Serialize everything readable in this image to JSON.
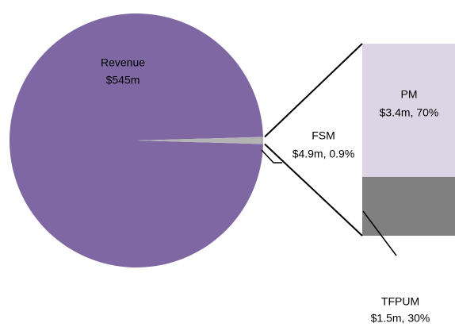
{
  "chart_data": {
    "type": "pie-of-bar",
    "pie": {
      "categories": [
        "Revenue",
        "FSM"
      ],
      "values": [
        545,
        4.9
      ],
      "value_labels": [
        "$545m",
        "$4.9m, 0.9%"
      ],
      "colors": [
        "#7f67a3",
        "#b3b3b3"
      ]
    },
    "bar": {
      "categories": [
        "PM",
        "TFPUM"
      ],
      "values": [
        3.4,
        1.5
      ],
      "value_labels": [
        "$3.4m,  70%",
        "$1.5m, 30%"
      ],
      "colors": [
        "#dcd5e6",
        "#808080"
      ]
    }
  }
}
